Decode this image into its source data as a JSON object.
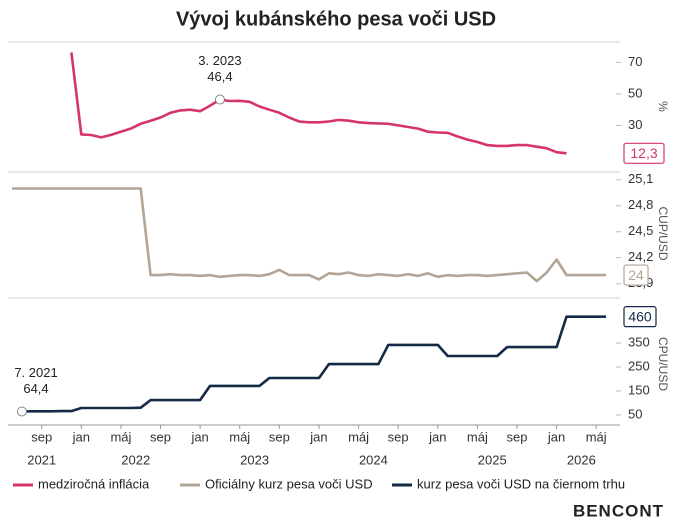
{
  "chart_data": [
    {
      "type": "line",
      "title": "Vývoj kubánského pesa voči USD",
      "ylabel": "%",
      "xlim": [
        "2021-06",
        "2026-07"
      ],
      "ylim": [
        3,
        81
      ],
      "yticks": [
        30,
        50,
        70
      ],
      "x": [
        "2021-12",
        "2022-01",
        "2022-02",
        "2022-03",
        "2022-04",
        "2022-05",
        "2022-06",
        "2022-07",
        "2022-08",
        "2022-09",
        "2022-10",
        "2022-11",
        "2022-12",
        "2023-01",
        "2023-02",
        "2023-03",
        "2023-04",
        "2023-05",
        "2023-06",
        "2023-07",
        "2023-08",
        "2023-09",
        "2023-10",
        "2023-11",
        "2023-12",
        "2024-01",
        "2024-02",
        "2024-03",
        "2024-04",
        "2024-05",
        "2024-06",
        "2024-07",
        "2024-08",
        "2024-09",
        "2024-10",
        "2024-11",
        "2024-12",
        "2025-01",
        "2025-02",
        "2025-03",
        "2025-04",
        "2025-05",
        "2025-06",
        "2025-07",
        "2025-08",
        "2025-09",
        "2025-10",
        "2025-11",
        "2025-12",
        "2026-01",
        "2026-02"
      ],
      "series": [
        {
          "name": "medziročná inflácia",
          "color": "#d6346f",
          "values": [
            76.3,
            24.3,
            23.9,
            22.4,
            24,
            26,
            28,
            31,
            33,
            35,
            38,
            39.5,
            40,
            39,
            42.5,
            46.4,
            45.5,
            45.6,
            45,
            42,
            40,
            38,
            35,
            32.5,
            32,
            32,
            32.5,
            33.5,
            33,
            32,
            31.5,
            31.3,
            31,
            30,
            29,
            28,
            26,
            25.5,
            25.3,
            23,
            21,
            19.5,
            17.5,
            17,
            17,
            17.5,
            17.5,
            16.5,
            15.5,
            13,
            12.3
          ],
          "value_labels": [
            null,
            null,
            null,
            null,
            null,
            null,
            null,
            null,
            null,
            null,
            null,
            null,
            null,
            null,
            null,
            "46,4",
            null,
            null,
            null,
            null,
            null,
            null,
            null,
            null,
            null,
            null,
            null,
            null,
            null,
            null,
            null,
            null,
            null,
            null,
            null,
            null,
            null,
            null,
            null,
            null,
            null,
            null,
            null,
            null,
            null,
            null,
            null,
            null,
            null,
            null,
            "12,3"
          ]
        }
      ],
      "annotations": [
        {
          "text": "3. 2023",
          "x": "2023-03"
        }
      ]
    },
    {
      "type": "line",
      "ylabel": "CUP/USD",
      "xlim": [
        "2021-06",
        "2026-07"
      ],
      "ylim": [
        23.77,
        25.19
      ],
      "yticks": [
        {
          "value": 23.9,
          "label": "23,9"
        },
        {
          "value": 24.2,
          "label": "24,2"
        },
        {
          "value": 24.5,
          "label": "24,5"
        },
        {
          "value": 24.8,
          "label": "24,8"
        },
        {
          "value": 25.1,
          "label": "25,1"
        }
      ],
      "x": [
        "2021-06",
        "2021-07",
        "2021-08",
        "2021-09",
        "2021-10",
        "2021-11",
        "2021-12",
        "2022-01",
        "2022-02",
        "2022-03",
        "2022-04",
        "2022-05",
        "2022-06",
        "2022-07",
        "2022-08",
        "2022-09",
        "2022-10",
        "2022-11",
        "2022-12",
        "2023-01",
        "2023-02",
        "2023-03",
        "2023-04",
        "2023-05",
        "2023-06",
        "2023-07",
        "2023-08",
        "2023-09",
        "2023-10",
        "2023-11",
        "2023-12",
        "2024-01",
        "2024-02",
        "2024-03",
        "2024-04",
        "2024-05",
        "2024-06",
        "2024-07",
        "2024-08",
        "2024-09",
        "2024-10",
        "2024-11",
        "2024-12",
        "2025-01",
        "2025-02",
        "2025-03",
        "2025-04",
        "2025-05",
        "2025-06",
        "2025-07",
        "2025-08",
        "2025-09",
        "2025-10",
        "2025-11",
        "2025-12",
        "2026-01",
        "2026-02",
        "2026-03",
        "2026-04",
        "2026-05",
        "2026-06"
      ],
      "series": [
        {
          "name": "Oficiálny kurz pesa voči USD",
          "color": "#b3a595",
          "values": [
            25,
            25,
            25,
            25,
            25,
            25,
            25,
            25,
            25,
            25,
            25,
            25,
            25,
            25,
            24,
            24,
            24.01,
            24,
            24,
            23.99,
            24,
            23.98,
            23.99,
            24,
            24,
            23.99,
            24.01,
            24.06,
            24,
            24,
            24,
            23.95,
            24.02,
            24.01,
            24.03,
            24,
            23.99,
            24.01,
            24,
            23.99,
            24.01,
            23.99,
            24.02,
            23.98,
            24,
            23.99,
            24,
            24,
            23.99,
            24,
            24.01,
            24.02,
            24.03,
            23.93,
            24.03,
            24.18,
            24,
            24,
            24,
            24,
            24
          ],
          "value_labels": [
            null,
            null,
            null,
            null,
            null,
            null,
            null,
            null,
            null,
            null,
            null,
            null,
            null,
            null,
            null,
            null,
            null,
            null,
            null,
            null,
            null,
            null,
            null,
            null,
            null,
            null,
            null,
            null,
            null,
            null,
            null,
            null,
            null,
            null,
            null,
            null,
            null,
            null,
            null,
            null,
            null,
            null,
            null,
            null,
            null,
            null,
            null,
            null,
            null,
            null,
            null,
            null,
            null,
            null,
            null,
            null,
            null,
            null,
            null,
            null,
            "24"
          ]
        }
      ]
    },
    {
      "type": "line",
      "ylabel": "CPU/USD",
      "xlim": [
        "2021-06",
        "2026-07"
      ],
      "ylim": [
        8,
        517
      ],
      "yticks": [
        50,
        150,
        250,
        350
      ],
      "xticks": [
        {
          "value": "2021-09",
          "label": "sep"
        },
        {
          "value": "2022-01",
          "label": "jan"
        },
        {
          "value": "2022-05",
          "label": "máj"
        },
        {
          "value": "2022-09",
          "label": "sep"
        },
        {
          "value": "2023-01",
          "label": "jan"
        },
        {
          "value": "2023-05",
          "label": "máj"
        },
        {
          "value": "2023-09",
          "label": "sep"
        },
        {
          "value": "2024-01",
          "label": "jan"
        },
        {
          "value": "2024-05",
          "label": "máj"
        },
        {
          "value": "2024-09",
          "label": "sep"
        },
        {
          "value": "2025-01",
          "label": "jan"
        },
        {
          "value": "2025-05",
          "label": "máj"
        },
        {
          "value": "2025-09",
          "label": "sep"
        },
        {
          "value": "2026-01",
          "label": "jan"
        },
        {
          "value": "2026-05",
          "label": "máj"
        }
      ],
      "years": [
        2021,
        2022,
        2023,
        2024,
        2025,
        2026
      ],
      "x": [
        "2021-07",
        "2021-08",
        "2021-09",
        "2021-10",
        "2021-11",
        "2021-12",
        "2022-01",
        "2022-02",
        "2022-03",
        "2022-04",
        "2022-05",
        "2022-06",
        "2022-07",
        "2022-08",
        "2022-09",
        "2022-10",
        "2022-11",
        "2022-12",
        "2023-01",
        "2023-02",
        "2023-03",
        "2023-04",
        "2023-05",
        "2023-06",
        "2023-07",
        "2023-08",
        "2023-09",
        "2023-10",
        "2023-11",
        "2023-12",
        "2024-01",
        "2024-02",
        "2024-03",
        "2024-04",
        "2024-05",
        "2024-06",
        "2024-07",
        "2024-08",
        "2024-09",
        "2024-10",
        "2024-11",
        "2024-12",
        "2025-01",
        "2025-02",
        "2025-03",
        "2025-04",
        "2025-05",
        "2025-06",
        "2025-07",
        "2025-08",
        "2025-09",
        "2025-10",
        "2025-11",
        "2025-12",
        "2026-01",
        "2026-02",
        "2026-03",
        "2026-04",
        "2026-05",
        "2026-06"
      ],
      "series": [
        {
          "name": "kurz pesa voči USD na čiernom trhu",
          "color": "#142a47",
          "values": [
            64.4,
            65,
            65,
            65,
            66,
            66,
            79,
            79,
            79,
            79,
            79,
            79,
            80,
            112,
            112,
            112,
            112,
            112,
            112,
            171,
            171,
            171,
            171,
            171,
            171,
            204,
            204,
            204,
            204,
            204,
            204,
            262,
            262,
            262,
            262,
            262,
            262,
            342,
            342,
            342,
            342,
            342,
            342,
            296,
            296,
            296,
            296,
            296,
            296,
            333,
            333,
            333,
            333,
            333,
            333,
            460,
            460,
            460,
            460,
            460
          ],
          "value_labels": [
            "64,4",
            null,
            null,
            null,
            null,
            null,
            null,
            null,
            null,
            null,
            null,
            null,
            null,
            null,
            null,
            null,
            null,
            null,
            null,
            null,
            null,
            null,
            null,
            null,
            null,
            null,
            null,
            null,
            null,
            null,
            null,
            null,
            null,
            null,
            null,
            null,
            null,
            null,
            null,
            null,
            null,
            null,
            null,
            null,
            null,
            null,
            null,
            null,
            null,
            null,
            null,
            null,
            null,
            null,
            null,
            null,
            null,
            null,
            null,
            "460"
          ]
        }
      ],
      "annotations": [
        {
          "text": "7. 2021",
          "x": "2021-07"
        }
      ]
    }
  ],
  "footer": "BENCONT"
}
